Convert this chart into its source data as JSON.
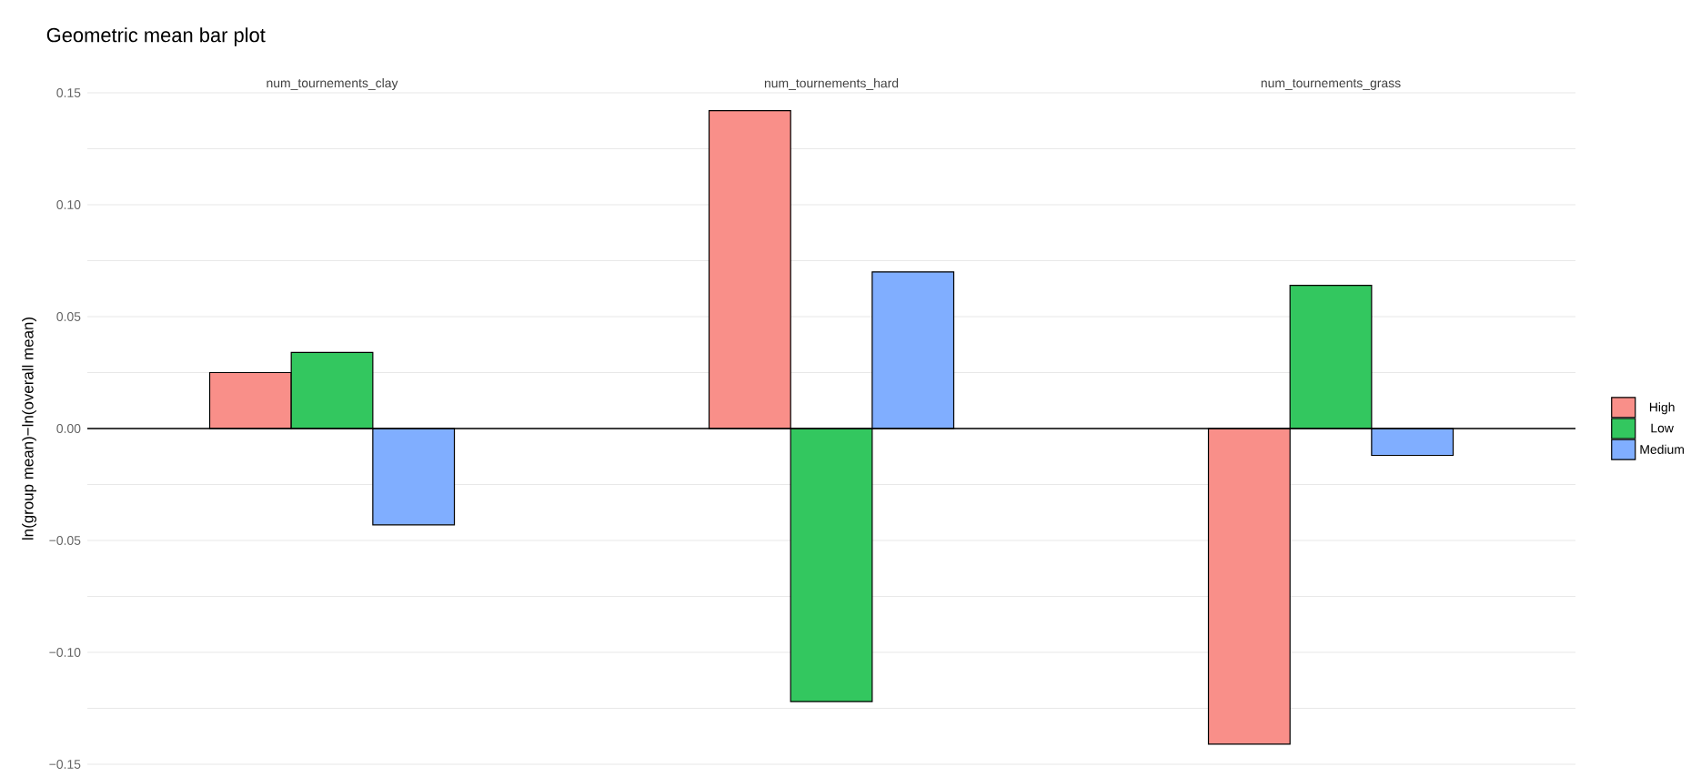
{
  "chart_data": {
    "type": "bar",
    "title": "Geometric mean bar plot",
    "ylabel": "ln(group mean)−ln(overall mean)",
    "categories": [
      "num_tournements_clay",
      "num_tournements_hard",
      "num_tournements_grass"
    ],
    "series": [
      {
        "name": "High",
        "color": "#f98f89",
        "values": [
          0.025,
          0.142,
          -0.141
        ]
      },
      {
        "name": "Low",
        "color": "#33c75f",
        "values": [
          0.034,
          -0.122,
          0.064
        ]
      },
      {
        "name": "Medium",
        "color": "#80aeff",
        "values": [
          -0.043,
          0.07,
          -0.012
        ]
      }
    ],
    "ylim": [
      -0.15,
      0.15
    ],
    "yticks": [
      {
        "value": -0.15,
        "label": "−0.15"
      },
      {
        "value": -0.125,
        "label": null
      },
      {
        "value": -0.1,
        "label": "−0.10"
      },
      {
        "value": -0.075,
        "label": null
      },
      {
        "value": -0.05,
        "label": "−0.05"
      },
      {
        "value": -0.025,
        "label": null
      },
      {
        "value": 0,
        "label": "0.00"
      },
      {
        "value": 0.025,
        "label": null
      },
      {
        "value": 0.05,
        "label": "0.05"
      },
      {
        "value": 0.075,
        "label": null
      },
      {
        "value": 0.1,
        "label": "0.10"
      },
      {
        "value": 0.125,
        "label": null
      },
      {
        "value": 0.15,
        "label": "0.15"
      }
    ],
    "grid": "y",
    "legend": "right",
    "ref_lines": [
      {
        "axis": "y",
        "value": 0,
        "color": "#000000"
      }
    ]
  }
}
